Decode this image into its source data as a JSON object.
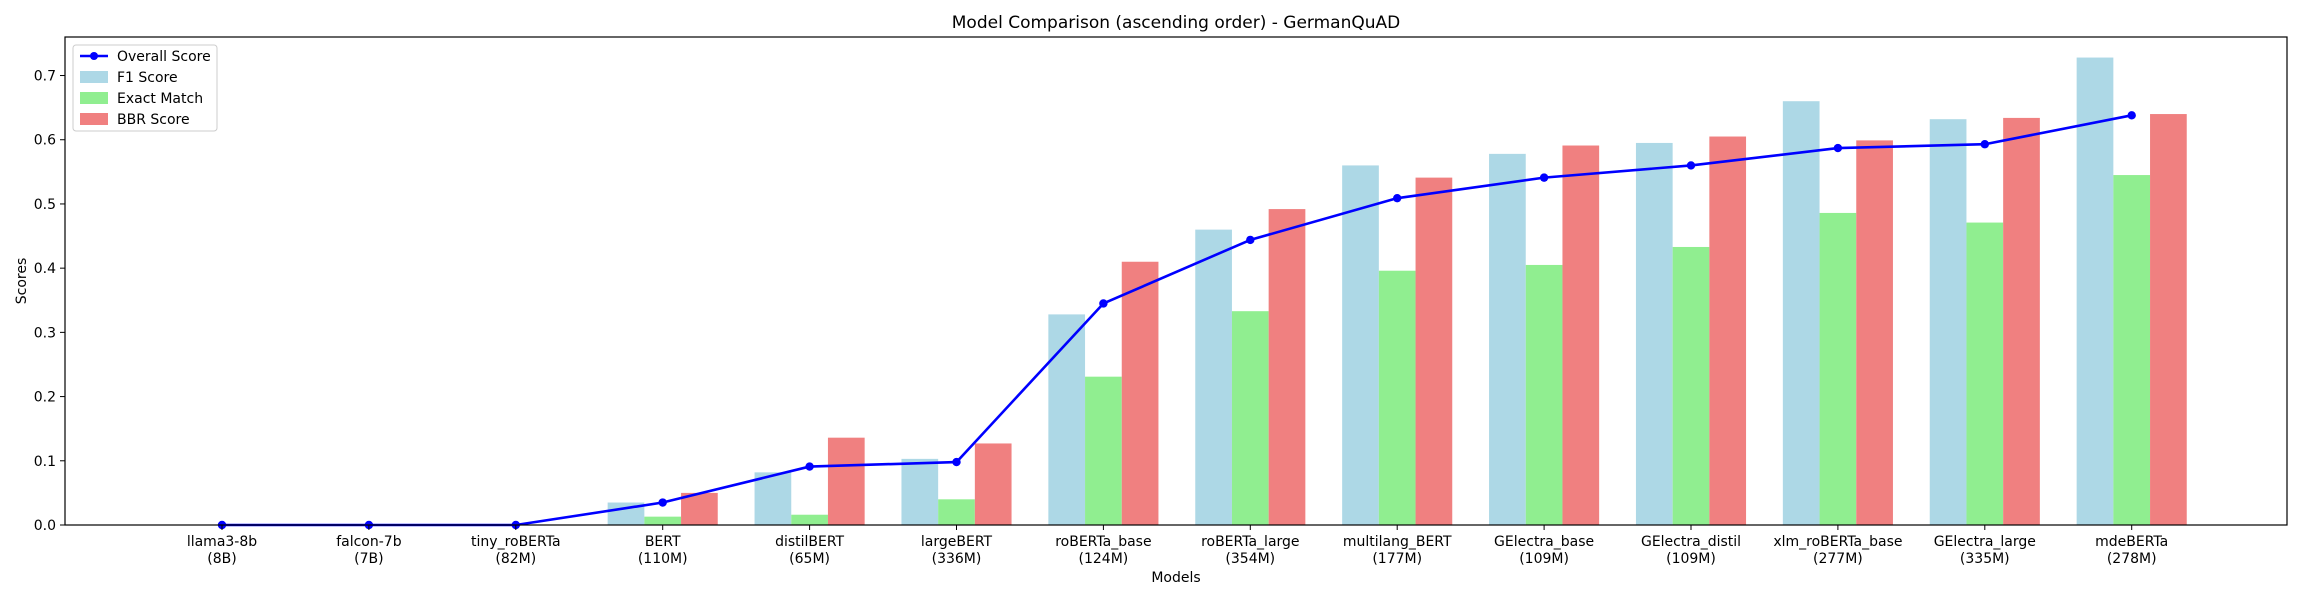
{
  "chart_data": {
    "type": "bar",
    "title": "Model Comparison (ascending order) - GermanQuAD",
    "xlabel": "Models",
    "ylabel": "Scores",
    "ylim": [
      0,
      0.76
    ],
    "yticks": [
      "0.0",
      "0.1",
      "0.2",
      "0.3",
      "0.4",
      "0.5",
      "0.6",
      "0.7"
    ],
    "grid": false,
    "legend_placement": "top-left",
    "categories": [
      [
        "llama3-8b",
        "(8B)"
      ],
      [
        "falcon-7b",
        "(7B)"
      ],
      [
        "tiny_roBERTa",
        "(82M)"
      ],
      [
        "BERT",
        "(110M)"
      ],
      [
        "distilBERT",
        "(65M)"
      ],
      [
        "largeBERT",
        "(336M)"
      ],
      [
        "roBERTa_base",
        "(124M)"
      ],
      [
        "roBERTa_large",
        "(354M)"
      ],
      [
        "multilang_BERT",
        "(177M)"
      ],
      [
        "GElectra_base",
        "(109M)"
      ],
      [
        "GElectra_distil",
        "(109M)"
      ],
      [
        "xlm_roBERTa_base",
        "(277M)"
      ],
      [
        "GElectra_large",
        "(335M)"
      ],
      [
        "mdeBERTa",
        "(278M)"
      ]
    ],
    "series": [
      {
        "name": "F1 Score",
        "kind": "bar",
        "color": "#add8e6",
        "values": [
          0,
          0,
          0,
          0.035,
          0.082,
          0.103,
          0.328,
          0.46,
          0.56,
          0.578,
          0.595,
          0.66,
          0.632,
          0.728
        ]
      },
      {
        "name": "Exact Match",
        "kind": "bar",
        "color": "#90ee90",
        "values": [
          0,
          0,
          0,
          0.013,
          0.016,
          0.04,
          0.231,
          0.333,
          0.396,
          0.405,
          0.433,
          0.486,
          0.471,
          0.545
        ]
      },
      {
        "name": "BBR Score",
        "kind": "bar",
        "color": "#f08080",
        "values": [
          0,
          0,
          0,
          0.05,
          0.136,
          0.127,
          0.41,
          0.492,
          0.541,
          0.591,
          0.605,
          0.599,
          0.634,
          0.64
        ]
      },
      {
        "name": "Overall Score",
        "kind": "line",
        "color": "#0000ff",
        "values": [
          0,
          0,
          0,
          0.035,
          0.091,
          0.098,
          0.345,
          0.444,
          0.509,
          0.541,
          0.56,
          0.587,
          0.593,
          0.638
        ]
      }
    ]
  }
}
